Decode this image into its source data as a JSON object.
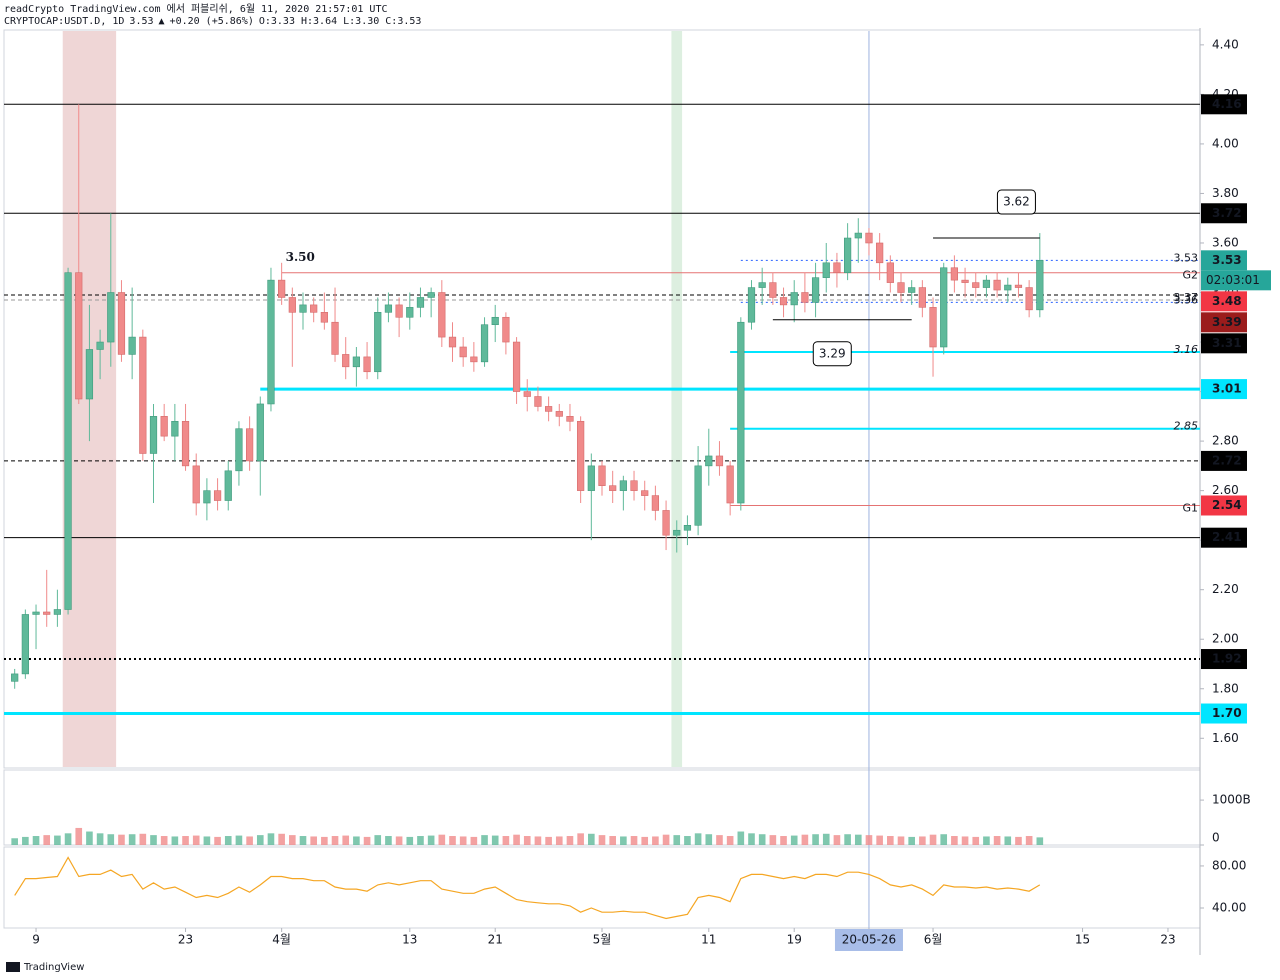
{
  "chart_data": {
    "type": "candlestick",
    "header": "readCrypto TradingView.com 에서 퍼블리쉬, 6월 11, 2020 21:57:01 UTC",
    "legend_parts": [
      {
        "text": "CRYPTOCAP:USDT.D, 1D",
        "color": "#131722"
      },
      {
        "text": "3.53",
        "color": "#26a69a"
      },
      {
        "text": "▲",
        "color": "#26a69a"
      },
      {
        "text": "+0.20 (+5.86%)",
        "color": "#26a69a"
      },
      {
        "text": "O:3.33 H:3.64 L:3.30 C:3.53",
        "color": "#26a69a"
      }
    ],
    "x": [
      "2020-03-07",
      "2020-03-08",
      "2020-03-09",
      "2020-03-10",
      "2020-03-11",
      "2020-03-12",
      "2020-03-13",
      "2020-03-14",
      "2020-03-15",
      "2020-03-16",
      "2020-03-17",
      "2020-03-18",
      "2020-03-19",
      "2020-03-20",
      "2020-03-21",
      "2020-03-22",
      "2020-03-23",
      "2020-03-24",
      "2020-03-25",
      "2020-03-26",
      "2020-03-27",
      "2020-03-28",
      "2020-03-29",
      "2020-03-30",
      "2020-03-31",
      "2020-04-01",
      "2020-04-02",
      "2020-04-03",
      "2020-04-04",
      "2020-04-05",
      "2020-04-06",
      "2020-04-07",
      "2020-04-08",
      "2020-04-09",
      "2020-04-10",
      "2020-04-11",
      "2020-04-12",
      "2020-04-13",
      "2020-04-14",
      "2020-04-15",
      "2020-04-16",
      "2020-04-17",
      "2020-04-18",
      "2020-04-19",
      "2020-04-20",
      "2020-04-21",
      "2020-04-22",
      "2020-04-23",
      "2020-04-24",
      "2020-04-25",
      "2020-04-26",
      "2020-04-27",
      "2020-04-28",
      "2020-04-29",
      "2020-04-30",
      "2020-05-01",
      "2020-05-02",
      "2020-05-03",
      "2020-05-04",
      "2020-05-05",
      "2020-05-06",
      "2020-05-07",
      "2020-05-08",
      "2020-05-09",
      "2020-05-10",
      "2020-05-11",
      "2020-05-12",
      "2020-05-13",
      "2020-05-14",
      "2020-05-15",
      "2020-05-16",
      "2020-05-17",
      "2020-05-18",
      "2020-05-19",
      "2020-05-20",
      "2020-05-21",
      "2020-05-22",
      "2020-05-23",
      "2020-05-24",
      "2020-05-25",
      "2020-05-26",
      "2020-05-27",
      "2020-05-28",
      "2020-05-29",
      "2020-05-30",
      "2020-05-31",
      "2020-06-01",
      "2020-06-02",
      "2020-06-03",
      "2020-06-04",
      "2020-06-05",
      "2020-06-06",
      "2020-06-07",
      "2020-06-08",
      "2020-06-09",
      "2020-06-10",
      "2020-06-11"
    ],
    "open": [
      1.83,
      1.86,
      2.1,
      2.11,
      2.1,
      2.12,
      3.48,
      2.97,
      3.17,
      3.2,
      3.4,
      3.15,
      3.22,
      2.75,
      2.9,
      2.82,
      2.88,
      2.7,
      2.55,
      2.6,
      2.56,
      2.68,
      2.85,
      2.72,
      2.95,
      3.45,
      3.38,
      3.32,
      3.35,
      3.32,
      3.28,
      3.15,
      3.1,
      3.14,
      3.08,
      3.32,
      3.35,
      3.3,
      3.34,
      3.38,
      3.4,
      3.22,
      3.18,
      3.14,
      3.12,
      3.27,
      3.3,
      3.2,
      3.0,
      2.98,
      2.94,
      2.92,
      2.9,
      2.88,
      2.6,
      2.7,
      2.62,
      2.6,
      2.64,
      2.6,
      2.58,
      2.52,
      2.42,
      2.44,
      2.46,
      2.7,
      2.74,
      2.7,
      2.55,
      3.28,
      3.42,
      3.44,
      3.38,
      3.35,
      3.4,
      3.36,
      3.46,
      3.52,
      3.48,
      3.62,
      3.64,
      3.6,
      3.52,
      3.44,
      3.4,
      3.42,
      3.34,
      3.18,
      3.5,
      3.45,
      3.44,
      3.42,
      3.45,
      3.41,
      3.43,
      3.42,
      3.33
    ],
    "high": [
      1.88,
      2.12,
      2.14,
      2.28,
      2.2,
      3.5,
      4.16,
      3.35,
      3.25,
      3.72,
      3.45,
      3.42,
      3.25,
      2.95,
      2.95,
      2.95,
      2.95,
      2.75,
      2.65,
      2.65,
      2.72,
      2.88,
      2.9,
      2.98,
      3.5,
      3.52,
      3.42,
      3.4,
      3.38,
      3.4,
      3.42,
      3.22,
      3.18,
      3.2,
      3.38,
      3.4,
      3.38,
      3.4,
      3.42,
      3.42,
      3.45,
      3.28,
      3.22,
      3.2,
      3.3,
      3.35,
      3.32,
      3.22,
      3.05,
      3.02,
      2.98,
      2.95,
      2.95,
      2.9,
      2.75,
      2.72,
      2.68,
      2.66,
      2.68,
      2.64,
      2.62,
      2.56,
      2.48,
      2.5,
      2.78,
      2.85,
      2.8,
      2.72,
      3.3,
      3.45,
      3.5,
      3.48,
      3.42,
      3.45,
      3.48,
      3.52,
      3.6,
      3.56,
      3.68,
      3.7,
      3.66,
      3.64,
      3.55,
      3.48,
      3.45,
      3.45,
      3.38,
      3.52,
      3.55,
      3.5,
      3.48,
      3.47,
      3.48,
      3.46,
      3.48,
      3.45,
      3.64
    ],
    "low": [
      1.8,
      1.84,
      1.96,
      2.05,
      2.05,
      2.1,
      2.95,
      2.8,
      3.05,
      3.1,
      3.12,
      3.05,
      2.72,
      2.55,
      2.8,
      2.72,
      2.68,
      2.5,
      2.48,
      2.52,
      2.52,
      2.62,
      2.68,
      2.58,
      2.92,
      3.35,
      3.1,
      3.25,
      3.28,
      3.25,
      3.12,
      3.05,
      3.02,
      3.05,
      3.05,
      3.28,
      3.22,
      3.25,
      3.3,
      3.3,
      3.18,
      3.12,
      3.1,
      3.08,
      3.1,
      3.2,
      3.15,
      2.95,
      2.92,
      2.92,
      2.88,
      2.86,
      2.84,
      2.55,
      2.4,
      2.58,
      2.55,
      2.52,
      2.56,
      2.52,
      2.48,
      2.36,
      2.35,
      2.38,
      2.42,
      2.62,
      2.66,
      2.5,
      2.52,
      3.25,
      3.35,
      3.35,
      3.3,
      3.28,
      3.32,
      3.3,
      3.4,
      3.42,
      3.45,
      3.52,
      3.55,
      3.45,
      3.4,
      3.36,
      3.35,
      3.3,
      3.06,
      3.15,
      3.4,
      3.38,
      3.38,
      3.38,
      3.38,
      3.36,
      3.38,
      3.3,
      3.3
    ],
    "close": [
      1.86,
      2.1,
      2.11,
      2.1,
      2.12,
      3.48,
      2.97,
      3.17,
      3.2,
      3.4,
      3.15,
      3.22,
      2.75,
      2.9,
      2.82,
      2.88,
      2.7,
      2.55,
      2.6,
      2.56,
      2.68,
      2.85,
      2.72,
      2.95,
      3.45,
      3.38,
      3.32,
      3.35,
      3.32,
      3.28,
      3.15,
      3.1,
      3.14,
      3.08,
      3.32,
      3.35,
      3.3,
      3.34,
      3.38,
      3.4,
      3.22,
      3.18,
      3.14,
      3.12,
      3.27,
      3.3,
      3.2,
      3.0,
      2.98,
      2.94,
      2.92,
      2.9,
      2.88,
      2.6,
      2.7,
      2.62,
      2.6,
      2.64,
      2.6,
      2.58,
      2.52,
      2.42,
      2.44,
      2.46,
      2.7,
      2.74,
      2.7,
      2.55,
      3.28,
      3.42,
      3.44,
      3.38,
      3.35,
      3.4,
      3.36,
      3.46,
      3.52,
      3.48,
      3.62,
      3.64,
      3.6,
      3.52,
      3.44,
      3.4,
      3.42,
      3.34,
      3.18,
      3.5,
      3.45,
      3.44,
      3.42,
      3.45,
      3.41,
      3.43,
      3.42,
      3.33,
      3.53
    ],
    "up_color": "#5fb99a",
    "down_color": "#f08a8a",
    "xlim": [
      "2020-03-06",
      "2020-06-26"
    ],
    "xticks": [
      {
        "value": "2020-03-09",
        "label": "9"
      },
      {
        "value": "2020-03-23",
        "label": "23"
      },
      {
        "value": "2020-04-01",
        "label": "4월"
      },
      {
        "value": "2020-04-13",
        "label": "13"
      },
      {
        "value": "2020-04-21",
        "label": "21"
      },
      {
        "value": "2020-05-01",
        "label": "5월"
      },
      {
        "value": "2020-05-11",
        "label": "11"
      },
      {
        "value": "2020-05-19",
        "label": "19"
      },
      {
        "value": "2020-05-26",
        "label": "20-05-26",
        "highlight": true
      },
      {
        "value": "2020-06-01",
        "label": "6월"
      },
      {
        "value": "2020-06-15",
        "label": "15"
      },
      {
        "value": "2020-06-23",
        "label": "23"
      }
    ],
    "ylim": [
      1.48,
      4.46
    ],
    "yticks": [
      {
        "value": 1.6,
        "label": "1.60"
      },
      {
        "value": 1.8,
        "label": "1.80"
      },
      {
        "value": 2.0,
        "label": "2.00"
      },
      {
        "value": 2.2,
        "label": "2.20"
      },
      {
        "value": 2.4,
        "label": "2.40"
      },
      {
        "value": 2.6,
        "label": "2.60"
      },
      {
        "value": 2.8,
        "label": "2.80"
      },
      {
        "value": 3.0,
        "label": "3.00"
      },
      {
        "value": 3.2,
        "label": "3.20"
      },
      {
        "value": 3.4,
        "label": "3.40"
      },
      {
        "value": 3.6,
        "label": "3.60"
      },
      {
        "value": 3.8,
        "label": "3.80"
      },
      {
        "value": 4.0,
        "label": "4.00"
      },
      {
        "value": 4.2,
        "label": "4.20"
      },
      {
        "value": 4.4,
        "label": "4.40"
      }
    ],
    "highlights": [
      {
        "from": "2020-03-12",
        "to": "2020-03-16",
        "color": "#e8c4c4"
      },
      {
        "from": "2020-05-08",
        "to": "2020-05-08",
        "color": "#cfe8d3"
      }
    ],
    "crosshair": "2020-05-26",
    "levels": [
      {
        "value": 4.16,
        "label": "4.16",
        "color": "#000000",
        "line": "solid",
        "width": 1,
        "badge_color": "#000000",
        "text_color": "#ffffff"
      },
      {
        "value": 3.72,
        "label": "3.72",
        "color": "#000000",
        "line": "solid",
        "width": 1,
        "badge_color": "#000000",
        "text_color": "#ffffff"
      },
      {
        "value": 3.53,
        "label": "3.53",
        "color": "#2962ff",
        "line": "dotted",
        "width": 1,
        "from": "2020-05-14",
        "badge_color": "#26a69a",
        "text_color": "#ffffff",
        "inline": true,
        "last": true
      },
      {
        "value": 3.48,
        "label": "3.48",
        "color": "#e57373",
        "line": "solid",
        "width": 1,
        "from": "2020-04-01",
        "tag": "G2",
        "badge_color": "#f23645",
        "text_color": "#ffffff"
      },
      {
        "value": 3.39,
        "label": "3.39",
        "color": "#000000",
        "line": "dashed",
        "width": 1,
        "badge_color": "#9b1c1c",
        "text_color": "#ffffff"
      },
      {
        "value": 3.37,
        "label": "3.37",
        "color": "#999999",
        "line": "dashed",
        "width": 1,
        "inline": true
      },
      {
        "value": 3.36,
        "label": "3.36",
        "color": "#2962ff",
        "line": "dotted",
        "width": 1,
        "from": "2020-05-14",
        "inline": true
      },
      {
        "value": 3.31,
        "label": "3.31",
        "badge_color": "#000000",
        "text_color": "#ffffff"
      },
      {
        "value": 3.16,
        "label": "3.16",
        "color": "#00e5ff",
        "line": "solid",
        "width": 2,
        "from": "2020-05-13",
        "inline": true,
        "italic": true
      },
      {
        "value": 3.01,
        "label": "3.01",
        "color": "#00e5ff",
        "line": "solid",
        "width": 3,
        "from": "2020-03-30",
        "badge_color": "#00e5ff",
        "text_color": "#000000"
      },
      {
        "value": 2.85,
        "label": "2.85",
        "color": "#00e5ff",
        "line": "solid",
        "width": 2,
        "from": "2020-05-13",
        "inline": true,
        "italic": true
      },
      {
        "value": 2.72,
        "label": "2.72",
        "color": "#000000",
        "line": "dashed",
        "width": 1,
        "badge_color": "#000000",
        "text_color": "#ffffff"
      },
      {
        "value": 2.54,
        "label": "2.54",
        "color": "#e57373",
        "line": "solid",
        "width": 1,
        "from": "2020-05-13",
        "tag": "G1",
        "badge_color": "#f23645",
        "text_color": "#ffffff"
      },
      {
        "value": 2.41,
        "label": "2.41",
        "color": "#000000",
        "line": "solid",
        "width": 1,
        "badge_color": "#000000",
        "text_color": "#ffffff"
      },
      {
        "value": 1.92,
        "label": "1.92",
        "color": "#000000",
        "line": "dotted",
        "width": 2,
        "badge_color": "#000000",
        "text_color": "#ffffff"
      },
      {
        "value": 1.7,
        "label": "1.70",
        "color": "#00e5ff",
        "line": "solid",
        "width": 3,
        "badge_color": "#00e5ff",
        "text_color": "#000000"
      }
    ],
    "countdown": "02:03:01",
    "annotations": [
      {
        "date": "2020-04-01",
        "value": 3.5,
        "label": "3.50"
      },
      {
        "date": "2020-06-01",
        "to": "2020-06-11",
        "value": 3.62,
        "callout": "up"
      },
      {
        "date": "2020-05-17",
        "to": "2020-05-30",
        "value": 3.29,
        "callout": "down"
      }
    ],
    "volume": {
      "values": [
        150,
        180,
        200,
        220,
        210,
        260,
        380,
        300,
        260,
        240,
        230,
        240,
        250,
        220,
        200,
        190,
        200,
        210,
        190,
        180,
        200,
        210,
        190,
        220,
        260,
        250,
        220,
        200,
        190,
        180,
        200,
        210,
        190,
        180,
        220,
        200,
        190,
        180,
        200,
        210,
        230,
        200,
        190,
        180,
        220,
        210,
        200,
        230,
        200,
        190,
        180,
        190,
        200,
        260,
        250,
        220,
        200,
        190,
        200,
        180,
        190,
        230,
        220,
        200,
        260,
        240,
        220,
        200,
        300,
        260,
        240,
        220,
        200,
        210,
        230,
        240,
        250,
        220,
        240,
        230,
        220,
        210,
        200,
        190,
        180,
        190,
        230,
        240,
        200,
        190,
        180,
        190,
        200,
        190,
        180,
        200,
        170
      ],
      "ylim": [
        0,
        1670
      ],
      "yticks": [
        0,
        {
          "value": 1000,
          "label": "1000B"
        }
      ]
    },
    "oscillator": {
      "values": [
        52,
        68,
        68,
        69,
        70,
        88,
        70,
        72,
        72,
        76,
        70,
        72,
        58,
        64,
        58,
        60,
        55,
        50,
        52,
        50,
        54,
        60,
        55,
        62,
        70,
        70,
        68,
        68,
        66,
        66,
        60,
        58,
        58,
        56,
        62,
        64,
        62,
        64,
        66,
        66,
        58,
        56,
        54,
        54,
        58,
        60,
        54,
        48,
        46,
        45,
        44,
        44,
        42,
        36,
        40,
        36,
        36,
        37,
        36,
        36,
        33,
        30,
        32,
        34,
        50,
        52,
        50,
        46,
        68,
        72,
        72,
        70,
        68,
        70,
        68,
        72,
        72,
        70,
        74,
        74,
        72,
        68,
        62,
        60,
        62,
        58,
        52,
        62,
        60,
        60,
        59,
        60,
        58,
        59,
        58,
        56,
        62
      ],
      "color": "#f5a623",
      "ylim": [
        21,
        98
      ],
      "yticks": [
        {
          "value": 40,
          "label": "40.00"
        },
        {
          "value": 80,
          "label": "80.00"
        }
      ]
    },
    "footer": "TradingView"
  }
}
